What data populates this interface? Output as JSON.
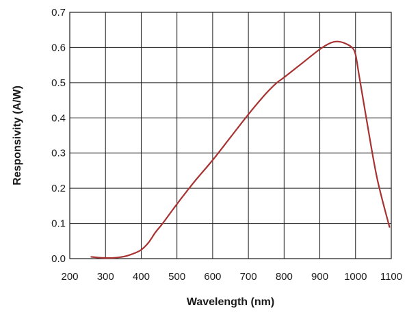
{
  "chart_data": {
    "type": "line",
    "title": "",
    "xlabel": "Wavelength (nm)",
    "ylabel": "Responsivity (A/W)",
    "xlim": [
      200,
      1100
    ],
    "ylim": [
      0,
      0.7
    ],
    "xticks": [
      200,
      300,
      400,
      500,
      600,
      700,
      800,
      900,
      1000,
      1100
    ],
    "yticks": [
      "0.0",
      "0.1",
      "0.2",
      "0.3",
      "0.4",
      "0.5",
      "0.6",
      "0.7"
    ],
    "grid": true,
    "legend": "none",
    "series": [
      {
        "color": "#a83232",
        "x": [
          260,
          280,
          300,
          320,
          340,
          360,
          380,
          400,
          420,
          440,
          460,
          500,
          550,
          600,
          650,
          700,
          750,
          780,
          800,
          850,
          900,
          930,
          950,
          970,
          990,
          1000,
          1010,
          1030,
          1060,
          1095
        ],
        "y": [
          0.005,
          0.003,
          0.002,
          0.002,
          0.004,
          0.008,
          0.015,
          0.025,
          0.045,
          0.075,
          0.1,
          0.155,
          0.22,
          0.28,
          0.345,
          0.41,
          0.47,
          0.5,
          0.515,
          0.555,
          0.595,
          0.613,
          0.617,
          0.612,
          0.6,
          0.58,
          0.52,
          0.4,
          0.23,
          0.09
        ]
      }
    ]
  }
}
